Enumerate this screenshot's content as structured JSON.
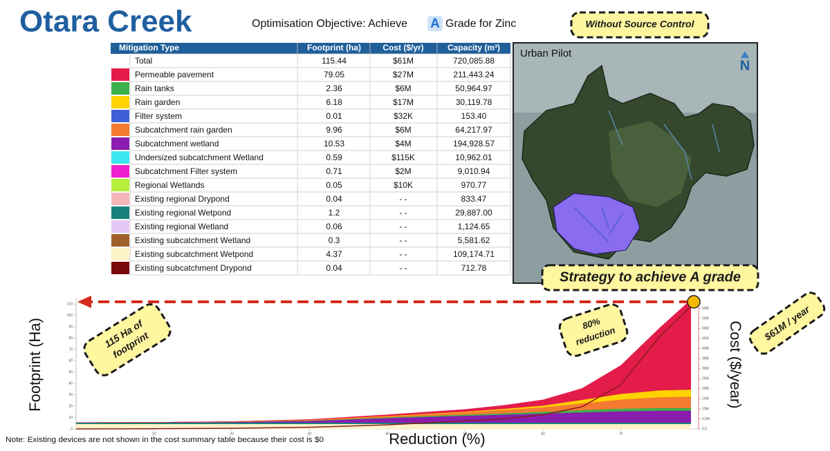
{
  "header": {
    "title": "Otara Creek",
    "objective_prefix": "Optimisation Objective: Achieve",
    "objective_grade": "A",
    "objective_suffix": "Grade for Zinc"
  },
  "callouts": {
    "scenario": "Without Source Control",
    "strategy": "Strategy to achieve A grade",
    "footprint": [
      "115 Ha of",
      "footprint"
    ],
    "reduction": [
      "80%",
      "reduction"
    ],
    "cost": "$61M / year"
  },
  "map": {
    "label": "Urban Pilot",
    "north": "N"
  },
  "table": {
    "columns": [
      "Mitigation Type",
      "Footprint (ha)",
      "Cost ($/yr)",
      "Capacity (m³)"
    ],
    "rows": [
      {
        "type": "Total",
        "footprint": "115.44",
        "cost": "$61M",
        "capacity": "720,085.88"
      },
      {
        "color": "#e31c4a",
        "type": "Permeable pavement",
        "footprint": "79.05",
        "cost": "$27M",
        "capacity": "211,443.24"
      },
      {
        "color": "#3cb04a",
        "type": "Rain tanks",
        "footprint": "2.36",
        "cost": "$6M",
        "capacity": "50,964.97"
      },
      {
        "color": "#ffd200",
        "type": "Rain garden",
        "footprint": "6.18",
        "cost": "$17M",
        "capacity": "30,119.78"
      },
      {
        "color": "#3f5fd6",
        "type": "Filter system",
        "footprint": "0.01",
        "cost": "$32K",
        "capacity": "153.40"
      },
      {
        "color": "#f47b30",
        "type": "Subcatchment rain garden",
        "footprint": "9.96",
        "cost": "$6M",
        "capacity": "64,217.97"
      },
      {
        "color": "#8a1cb0",
        "type": "Subcatchment wetland",
        "footprint": "10.53",
        "cost": "$4M",
        "capacity": "194,928.57"
      },
      {
        "color": "#3ee6f0",
        "type": "Undersized subcatchment Wetland",
        "footprint": "0.59",
        "cost": "$115K",
        "capacity": "10,962.01"
      },
      {
        "color": "#f020d0",
        "type": "Subcatchment Filter system",
        "footprint": "0.71",
        "cost": "$2M",
        "capacity": "9,010.94"
      },
      {
        "color": "#b4f03c",
        "type": "Regional Wetlands",
        "footprint": "0.05",
        "cost": "$10K",
        "capacity": "970.77"
      },
      {
        "color": "#f4b6b8",
        "type": "Existing regional Drypond",
        "footprint": "0.04",
        "cost": "- -",
        "capacity": "833.47"
      },
      {
        "color": "#16807a",
        "type": "Existing regional Wetpond",
        "footprint": "1.2",
        "cost": "- -",
        "capacity": "29,887.00"
      },
      {
        "color": "#e4c8f4",
        "type": "Existing regional Wetland",
        "footprint": "0.06",
        "cost": "- -",
        "capacity": "1,124.65"
      },
      {
        "color": "#a0602a",
        "type": "Existing subcatchment Wetland",
        "footprint": "0.3",
        "cost": "- -",
        "capacity": "5,581.62"
      },
      {
        "color": "#fdf3c8",
        "type": "Existing subcatchment Wetpond",
        "footprint": "4.37",
        "cost": "- -",
        "capacity": "109,174.71"
      },
      {
        "color": "#7a0a0a",
        "type": "Existing subcatchment Drypond",
        "footprint": "0.04",
        "cost": "- -",
        "capacity": "712.78"
      }
    ]
  },
  "note": "Note: Existing devices are not shown in the cost summary table because their cost is $0",
  "chart_data": {
    "type": "area",
    "x_label": "Reduction (%)",
    "y_label": "Footprint (Ha)",
    "y2_label": "Cost ($/year)",
    "x": [
      0,
      10,
      20,
      30,
      40,
      50,
      55,
      60,
      65,
      70,
      75,
      79
    ],
    "xlim": [
      0,
      80
    ],
    "xticks": [
      10,
      20,
      30,
      40,
      50,
      60,
      70
    ],
    "ylim": [
      0,
      115
    ],
    "yticks": [
      0,
      10,
      20,
      30,
      40,
      50,
      60,
      70,
      80,
      90,
      100,
      110
    ],
    "y2lim": [
      0,
      65000000
    ],
    "y2ticks": [
      {
        "value": 0,
        "label": "0.0"
      },
      {
        "value": 5000000,
        "label": "5.0M"
      },
      {
        "value": 10000000,
        "label": "10M"
      },
      {
        "value": 15000000,
        "label": "15M"
      },
      {
        "value": 20000000,
        "label": "20M"
      },
      {
        "value": 25000000,
        "label": "25M"
      },
      {
        "value": 30000000,
        "label": "30M"
      },
      {
        "value": 35000000,
        "label": "35M"
      },
      {
        "value": 40000000,
        "label": "40M"
      },
      {
        "value": 45000000,
        "label": "45M"
      },
      {
        "value": 50000000,
        "label": "50M"
      },
      {
        "value": 55000000,
        "label": "55M"
      },
      {
        "value": 60000000,
        "label": "60M"
      }
    ],
    "series": [
      {
        "color": "#fdf3c8",
        "values": [
          4.4,
          4.4,
          4.4,
          4.4,
          4.4,
          4.4,
          4.4,
          4.4,
          4.4,
          4.4,
          4.4,
          4.4
        ]
      },
      {
        "color": "#16807a",
        "values": [
          1.2,
          1.2,
          1.2,
          1.2,
          1.2,
          1.2,
          1.2,
          1.2,
          1.2,
          1.2,
          1.2,
          1.2
        ]
      },
      {
        "color": "#8a1cb0",
        "values": [
          0,
          0.2,
          0.5,
          1.5,
          4,
          6,
          7,
          8,
          9,
          10,
          10.5,
          10.5
        ]
      },
      {
        "color": "#3cb04a",
        "values": [
          0,
          0,
          0.1,
          0.3,
          0.6,
          1,
          1.2,
          1.5,
          2,
          2.3,
          2.4,
          2.4
        ]
      },
      {
        "color": "#f47b30",
        "values": [
          0,
          0,
          0.2,
          0.5,
          1,
          2,
          3,
          4,
          6,
          8,
          9.5,
          10
        ]
      },
      {
        "color": "#ffd200",
        "values": [
          0,
          0,
          0,
          0.1,
          0.3,
          0.6,
          1,
          1.5,
          3,
          5,
          6,
          6.2
        ]
      },
      {
        "color": "#e31c4a",
        "values": [
          0,
          0,
          0.1,
          0.3,
          1,
          2,
          3,
          5,
          10,
          25,
          55,
          79
        ]
      },
      {
        "color": "#8b1a1a",
        "axis": "y2",
        "values": [
          0,
          100000,
          300000,
          800000,
          2000000,
          4000000,
          5000000,
          7000000,
          11000000,
          22000000,
          46000000,
          61000000
        ]
      }
    ]
  }
}
